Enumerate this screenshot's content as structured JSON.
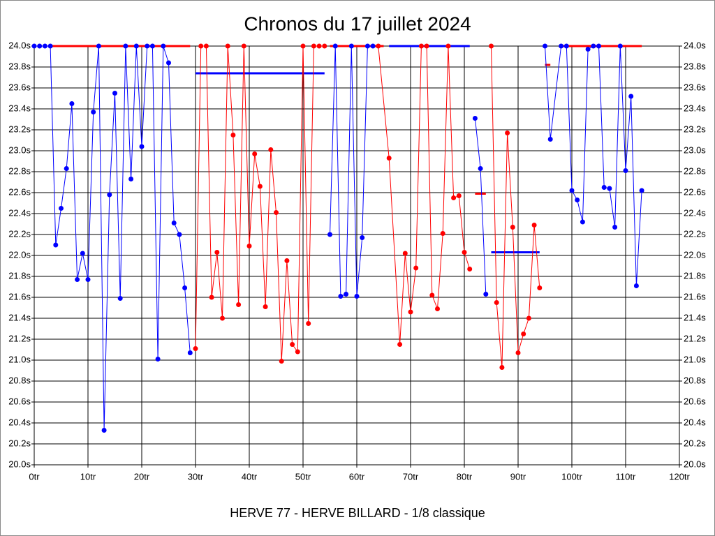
{
  "chart_data": {
    "type": "line",
    "title": "Chronos du 17 juillet 2024",
    "xlabel": "HERVE 77 - HERVE BILLARD - 1/8 classique",
    "xlim": [
      0,
      120
    ],
    "ylim": [
      20,
      24
    ],
    "grid": true,
    "xticks": [
      {
        "value": 0,
        "label": "0tr"
      },
      {
        "value": 10,
        "label": "10tr"
      },
      {
        "value": 20,
        "label": "20tr"
      },
      {
        "value": 30,
        "label": "30tr"
      },
      {
        "value": 40,
        "label": "40tr"
      },
      {
        "value": 50,
        "label": "50tr"
      },
      {
        "value": 60,
        "label": "60tr"
      },
      {
        "value": 70,
        "label": "70tr"
      },
      {
        "value": 80,
        "label": "80tr"
      },
      {
        "value": 90,
        "label": "90tr"
      },
      {
        "value": 100,
        "label": "100tr"
      },
      {
        "value": 110,
        "label": "110tr"
      },
      {
        "value": 120,
        "label": "120tr"
      }
    ],
    "yticks": [
      {
        "value": 20,
        "label": "20.0s"
      },
      {
        "value": 20.2,
        "label": "20.2s"
      },
      {
        "value": 20.4,
        "label": "20.4s"
      },
      {
        "value": 20.6,
        "label": "20.6s"
      },
      {
        "value": 20.8,
        "label": "20.8s"
      },
      {
        "value": 21,
        "label": "21.0s"
      },
      {
        "value": 21.2,
        "label": "21.2s"
      },
      {
        "value": 21.4,
        "label": "21.4s"
      },
      {
        "value": 21.6,
        "label": "21.6s"
      },
      {
        "value": 21.8,
        "label": "21.8s"
      },
      {
        "value": 22,
        "label": "22.0s"
      },
      {
        "value": 22.2,
        "label": "22.2s"
      },
      {
        "value": 22.4,
        "label": "22.4s"
      },
      {
        "value": 22.6,
        "label": "22.6s"
      },
      {
        "value": 22.8,
        "label": "22.8s"
      },
      {
        "value": 23,
        "label": "23.0s"
      },
      {
        "value": 23.2,
        "label": "23.2s"
      },
      {
        "value": 23.4,
        "label": "23.4s"
      },
      {
        "value": 23.6,
        "label": "23.6s"
      },
      {
        "value": 23.8,
        "label": "23.8s"
      },
      {
        "value": 24,
        "label": "24.0s"
      }
    ],
    "series": [
      {
        "color": "#0000ff",
        "x": [
          0,
          1,
          2,
          3,
          4,
          5,
          6,
          7,
          8,
          9,
          10,
          11,
          12,
          13,
          14,
          15,
          16,
          17,
          18,
          19,
          20,
          21,
          22,
          23,
          24,
          25,
          26,
          27,
          28,
          29
        ],
        "values": [
          24,
          24,
          24,
          24,
          22.1,
          22.45,
          22.83,
          23.45,
          21.77,
          22.02,
          21.77,
          23.37,
          24,
          20.33,
          22.58,
          23.55,
          21.59,
          24,
          22.73,
          24,
          23.04,
          24,
          24,
          21.01,
          24,
          23.84,
          22.31,
          22.2,
          21.69,
          21.07
        ]
      },
      {
        "color": "#ff0000",
        "x": [
          30,
          31,
          32,
          33,
          34,
          35,
          36,
          37,
          38,
          39,
          40,
          41,
          42,
          43,
          44,
          45,
          46,
          47,
          48,
          49,
          50,
          51,
          52,
          53,
          54
        ],
        "values": [
          21.11,
          24,
          24,
          21.6,
          22.03,
          21.4,
          24,
          23.15,
          21.53,
          24,
          22.09,
          22.97,
          22.66,
          21.51,
          23.01,
          22.41,
          20.99,
          21.95,
          21.15,
          21.08,
          24,
          21.35,
          24,
          24,
          24
        ]
      },
      {
        "color": "#0000ff",
        "x": [
          55,
          56,
          57,
          58,
          59,
          60,
          61,
          62,
          63
        ],
        "values": [
          22.2,
          24,
          21.61,
          21.63,
          24,
          21.61,
          22.17,
          24,
          24
        ]
      },
      {
        "color": "#ff0000",
        "x": [
          64,
          66,
          68,
          69,
          70,
          71,
          72,
          73,
          74,
          75,
          76,
          77,
          78,
          79,
          80,
          81
        ],
        "values": [
          24,
          22.93,
          21.15,
          22.02,
          21.46,
          21.88,
          24,
          24,
          21.62,
          21.49,
          22.21,
          24,
          22.55,
          22.57,
          22.03,
          21.87
        ]
      },
      {
        "color": "#0000ff",
        "x": [
          82,
          83,
          84
        ],
        "values": [
          23.31,
          22.83,
          21.63
        ]
      },
      {
        "color": "#ff0000",
        "x": [
          85,
          86,
          87,
          88,
          89,
          90,
          91,
          92,
          93,
          94
        ],
        "values": [
          24,
          21.55,
          20.93,
          23.17,
          22.27,
          21.07,
          21.25,
          21.4,
          22.29,
          21.69
        ]
      },
      {
        "color": "#0000ff",
        "x": [
          95,
          96,
          98,
          99,
          100,
          101,
          102,
          103,
          104,
          105,
          106,
          107,
          108,
          109,
          110,
          111,
          112,
          113
        ],
        "values": [
          24,
          23.11,
          24,
          24,
          22.62,
          22.53,
          22.32,
          23.97,
          24,
          24,
          22.65,
          22.64,
          22.27,
          24,
          22.81,
          23.52,
          21.71,
          22.62
        ]
      }
    ],
    "segments": [
      {
        "color": "#ff0000",
        "x": [
          3,
          29
        ],
        "value": 24
      },
      {
        "color": "#0000ff",
        "x": [
          30,
          54
        ],
        "value": 23.74
      },
      {
        "color": "#ff0000",
        "x": [
          55,
          65
        ],
        "value": 24
      },
      {
        "color": "#0000ff",
        "x": [
          66,
          81
        ],
        "value": 24
      },
      {
        "color": "#ff0000",
        "x": [
          82,
          84
        ],
        "value": 22.59
      },
      {
        "color": "#0000ff",
        "x": [
          85,
          94
        ],
        "value": 22.03
      },
      {
        "color": "#ff0000",
        "x": [
          95,
          96
        ],
        "value": 23.82
      },
      {
        "color": "#ff0000",
        "x": [
          98,
          113
        ],
        "value": 24
      }
    ]
  }
}
